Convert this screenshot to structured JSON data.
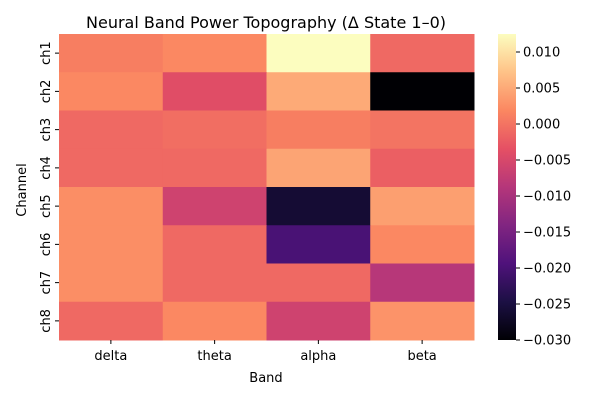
{
  "chart_data": {
    "type": "heatmap",
    "title": "Neural Band Power Topography (Δ State 1–0)",
    "xlabel": "Band",
    "ylabel": "Channel",
    "x_categories": [
      "delta",
      "theta",
      "alpha",
      "beta"
    ],
    "y_categories": [
      "ch1",
      "ch2",
      "ch3",
      "ch4",
      "ch5",
      "ch6",
      "ch7",
      "ch8"
    ],
    "values": [
      [
        0.001,
        0.002,
        0.0125,
        -0.001
      ],
      [
        0.002,
        -0.004,
        0.005,
        -0.03
      ],
      [
        -0.001,
        -0.0005,
        0.001,
        0.0
      ],
      [
        -0.001,
        -0.001,
        0.0045,
        -0.002
      ],
      [
        0.0025,
        -0.006,
        -0.026,
        0.004
      ],
      [
        0.0025,
        -0.001,
        -0.02,
        0.002
      ],
      [
        0.0025,
        -0.001,
        -0.001,
        -0.0085
      ],
      [
        -0.001,
        0.002,
        -0.006,
        0.003
      ]
    ],
    "colorbar": {
      "vmin": -0.03,
      "vmax": 0.0125,
      "ticks": [
        -0.03,
        -0.025,
        -0.02,
        -0.015,
        -0.01,
        -0.005,
        0.0,
        0.005,
        0.01
      ],
      "tick_labels": [
        "−0.030",
        "−0.025",
        "−0.020",
        "−0.015",
        "−0.010",
        "−0.005",
        "0.000",
        "0.005",
        "0.010"
      ],
      "colormap": "magma"
    }
  }
}
